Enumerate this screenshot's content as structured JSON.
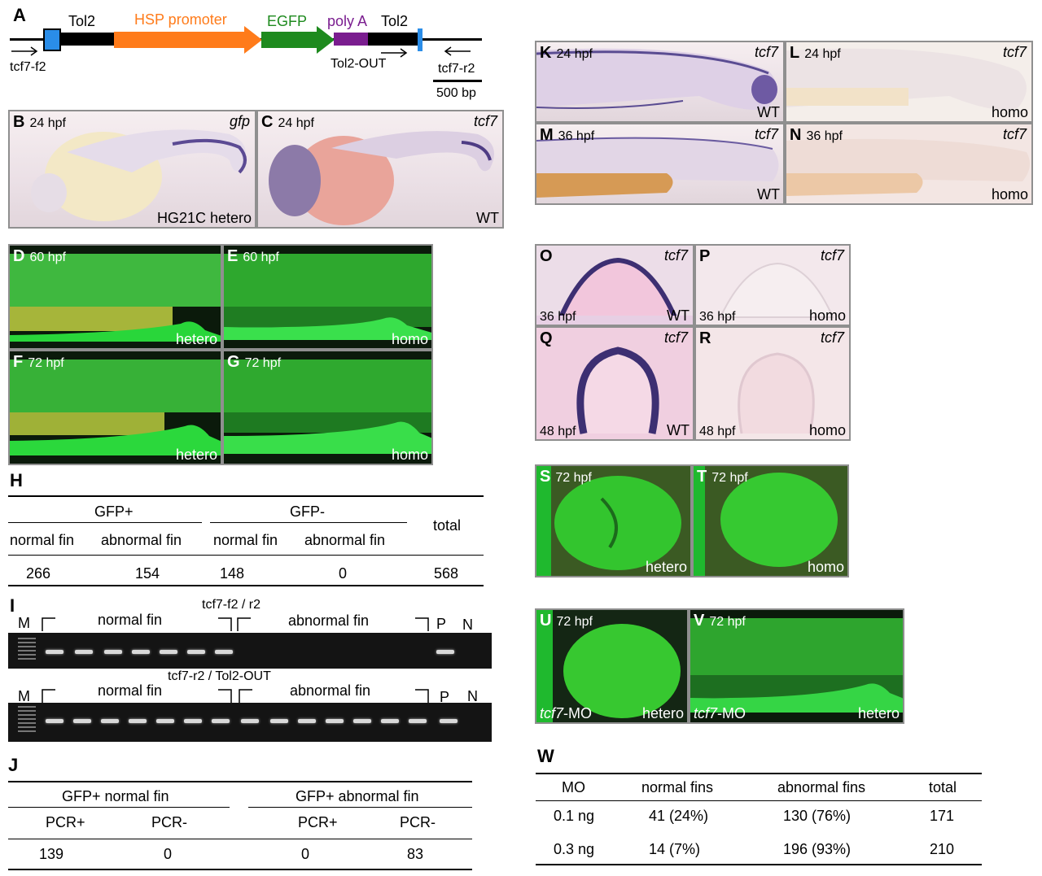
{
  "panelA": {
    "label": "A",
    "tol2_left": "Tol2",
    "hsp": "HSP promoter",
    "egfp": "EGFP",
    "polya": "poly A",
    "tol2_right": "Tol2",
    "primer_f2": "tcf7-f2",
    "primer_out": "Tol2-OUT",
    "primer_r2": "tcf7-r2",
    "scale": "500 bp",
    "colors": {
      "hsp": "#ff7b1a",
      "egfp": "#1e8a1e",
      "polya": "#7a1d8f",
      "tol2": "#000000",
      "end": "#2a8de8"
    }
  },
  "panelB": {
    "label": "B",
    "stage": "24 hpf",
    "gene": "gfp",
    "genotype": "HG21C hetero"
  },
  "panelC": {
    "label": "C",
    "stage": "24 hpf",
    "gene": "tcf7",
    "genotype": "WT"
  },
  "panelD": {
    "label": "D",
    "stage": "60 hpf",
    "genotype": "hetero"
  },
  "panelE": {
    "label": "E",
    "stage": "60 hpf",
    "genotype": "homo"
  },
  "panelF": {
    "label": "F",
    "stage": "72 hpf",
    "genotype": "hetero"
  },
  "panelG": {
    "label": "G",
    "stage": "72 hpf",
    "genotype": "homo"
  },
  "tableH": {
    "label": "H",
    "group1": "GFP+",
    "group2": "GFP-",
    "total_header": "total",
    "col1": "normal fin",
    "col2": "abnormal fin",
    "col3": "normal fin",
    "col4": "abnormal fin",
    "values": [
      "266",
      "154",
      "148",
      "0",
      "568"
    ]
  },
  "panelI": {
    "label": "I",
    "primers1": "tcf7-f2 / r2",
    "primers2": "tcf7-r2 / Tol2-OUT",
    "marker": "M",
    "normal": "normal fin",
    "abnormal": "abnormal fin",
    "pos": "P",
    "neg": "N"
  },
  "tableJ": {
    "label": "J",
    "group1": "GFP+ normal fin",
    "group2": "GFP+ abnormal fin",
    "col1": "PCR+",
    "col2": "PCR-",
    "col3": "PCR+",
    "col4": "PCR-",
    "values": [
      "139",
      "0",
      "0",
      "83"
    ]
  },
  "panelK": {
    "label": "K",
    "stage": "24 hpf",
    "gene": "tcf7",
    "genotype": "WT"
  },
  "panelL": {
    "label": "L",
    "stage": "24 hpf",
    "gene": "tcf7",
    "genotype": "homo"
  },
  "panelM": {
    "label": "M",
    "stage": "36 hpf",
    "gene": "tcf7",
    "genotype": "WT"
  },
  "panelN": {
    "label": "N",
    "stage": "36 hpf",
    "gene": "tcf7",
    "genotype": "homo"
  },
  "panelO": {
    "label": "O",
    "stage": "36 hpf",
    "gene": "tcf7",
    "genotype": "WT"
  },
  "panelP": {
    "label": "P",
    "stage": "36 hpf",
    "gene": "tcf7",
    "genotype": "homo"
  },
  "panelQ": {
    "label": "Q",
    "stage": "48 hpf",
    "gene": "tcf7",
    "genotype": "WT"
  },
  "panelR": {
    "label": "R",
    "stage": "48 hpf",
    "gene": "tcf7",
    "genotype": "homo"
  },
  "panelS": {
    "label": "S",
    "stage": "72 hpf",
    "genotype": "hetero"
  },
  "panelT": {
    "label": "T",
    "stage": "72 hpf",
    "genotype": "homo"
  },
  "panelU": {
    "label": "U",
    "stage": "72 hpf",
    "treatment": "tcf7",
    "treatment_suffix": "-MO",
    "genotype": "hetero"
  },
  "panelV": {
    "label": "V",
    "stage": "72 hpf",
    "treatment": "tcf7",
    "treatment_suffix": "-MO",
    "genotype": "hetero"
  },
  "tableW": {
    "label": "W",
    "headers": [
      "MO",
      "normal fins",
      "abnormal fins",
      "total"
    ],
    "rows": [
      [
        "0.1 ng",
        "41 (24%)",
        "130 (76%)",
        "171"
      ],
      [
        "0.3 ng",
        "14 (7%)",
        "196 (93%)",
        "210"
      ]
    ]
  }
}
